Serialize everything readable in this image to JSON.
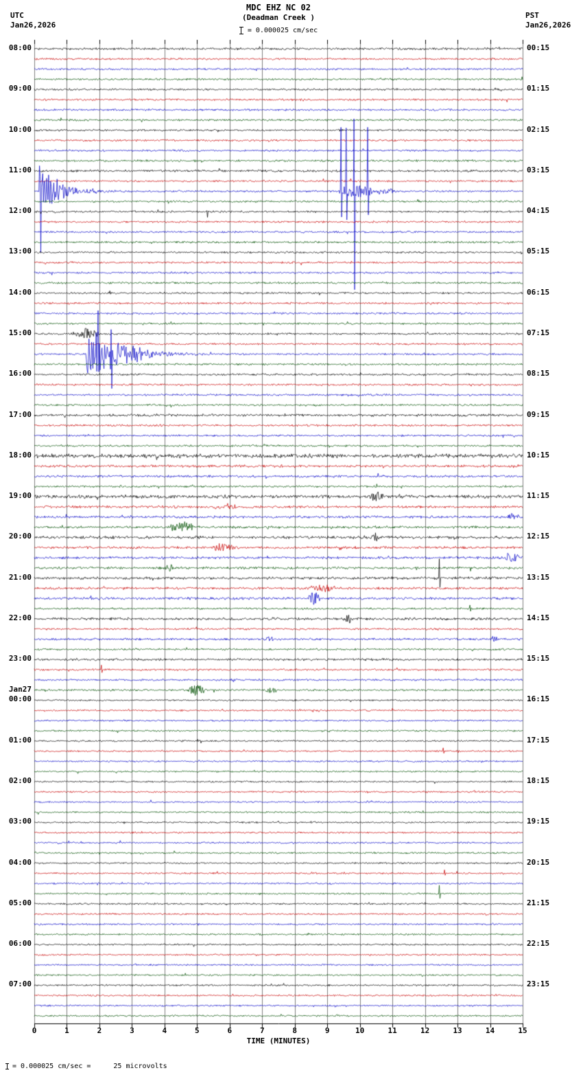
{
  "header": {
    "title": "MDC EHZ NC 02",
    "subtitle": "(Deadman Creek )",
    "scale_note": "= 0.000025 cm/sec",
    "left_tz": "UTC",
    "left_date": "Jan26,2026",
    "right_tz": "PST",
    "right_date": "Jan26,2026"
  },
  "footer": {
    "scale_note": "= 0.000025 cm/sec =",
    "volts_note": "25 microvolts"
  },
  "chart_data": {
    "type": "line",
    "title": "MDC EHZ NC 02 (Deadman Creek) webicorder",
    "xlabel": "TIME (MINUTES)",
    "x_range_minutes": [
      0,
      15
    ],
    "x_ticks": [
      "0",
      "1",
      "2",
      "3",
      "4",
      "5",
      "6",
      "7",
      "8",
      "9",
      "10",
      "11",
      "12",
      "13",
      "14",
      "15"
    ],
    "minutes_per_row": 15,
    "rows_per_hour": 4,
    "row_count": 96,
    "trace_colors": [
      "#000000",
      "#c80000",
      "#0a0ac8",
      "#005000"
    ],
    "grid_color": "#7d7d7d",
    "left_labels": [
      {
        "label": "08:00"
      },
      {
        "label": "09:00"
      },
      {
        "label": "10:00"
      },
      {
        "label": "11:00"
      },
      {
        "label": "12:00"
      },
      {
        "label": "13:00"
      },
      {
        "label": "14:00"
      },
      {
        "label": "15:00"
      },
      {
        "label": "16:00"
      },
      {
        "label": "17:00"
      },
      {
        "label": "18:00"
      },
      {
        "label": "19:00"
      },
      {
        "label": "20:00"
      },
      {
        "label": "21:00"
      },
      {
        "label": "22:00"
      },
      {
        "label": "23:00"
      },
      {
        "prefix": "Jan27",
        "label": "00:00"
      },
      {
        "label": "01:00"
      },
      {
        "label": "02:00"
      },
      {
        "label": "03:00"
      },
      {
        "label": "04:00"
      },
      {
        "label": "05:00"
      },
      {
        "label": "06:00"
      },
      {
        "label": "07:00"
      }
    ],
    "right_labels": [
      "00:15",
      "01:15",
      "02:15",
      "03:15",
      "04:15",
      "05:15",
      "06:15",
      "07:15",
      "08:15",
      "09:15",
      "10:15",
      "11:15",
      "12:15",
      "13:15",
      "14:15",
      "15:15",
      "16:15",
      "17:15",
      "18:15",
      "19:15",
      "20:15",
      "21:15",
      "22:15",
      "23:15"
    ],
    "base_noise": 1.1,
    "quiet_from_row": 64,
    "quiet_noise": 0.95,
    "noisy_rows": {
      "0": 1.3,
      "12": 1.3,
      "36": 1.4,
      "40": 2.3,
      "41": 1.4,
      "42": 1.3,
      "44": 1.9,
      "45": 1.4,
      "46": 1.4,
      "47": 1.4,
      "48": 1.6,
      "49": 1.4,
      "50": 1.4,
      "51": 1.4,
      "52": 1.5,
      "53": 1.4,
      "54": 1.4,
      "56": 1.5,
      "58": 1.3,
      "60": 1.3
    },
    "events": [
      {
        "row": 14,
        "type": "spike",
        "t": 0.18,
        "up": 55,
        "down": 80
      },
      {
        "row": 14,
        "type": "quake",
        "start": 0.15,
        "amp": 26,
        "decay": 1.4
      },
      {
        "row": 14,
        "type": "burst",
        "start": 0.15,
        "end": 1.05,
        "amp": 15
      },
      {
        "row": 14,
        "type": "burst",
        "start": 9.35,
        "end": 10.45,
        "amp": 10
      },
      {
        "row": 14,
        "type": "spike",
        "t": 9.42,
        "up": 95,
        "down": 40
      },
      {
        "row": 14,
        "type": "spike",
        "t": 9.58,
        "up": 100,
        "down": 45
      },
      {
        "row": 14,
        "type": "spike",
        "t": 9.82,
        "up": 102,
        "down": 150
      },
      {
        "row": 14,
        "type": "spike",
        "t": 10.24,
        "up": 92,
        "down": 35
      },
      {
        "row": 14,
        "type": "burst",
        "start": 10.5,
        "end": 11.2,
        "amp": 4
      },
      {
        "row": 16,
        "type": "spike",
        "t": 5.3,
        "up": 2,
        "down": 9
      },
      {
        "row": 28,
        "type": "burst",
        "start": 1.15,
        "end": 2.0,
        "amp": 8
      },
      {
        "row": 30,
        "type": "quake",
        "start": 1.6,
        "amp": 32,
        "decay": 0.95
      },
      {
        "row": 30,
        "type": "burst",
        "start": 1.6,
        "end": 3.4,
        "amp": 12
      },
      {
        "row": 30,
        "type": "spike",
        "t": 1.95,
        "up": 60,
        "down": 40
      },
      {
        "row": 30,
        "type": "spike",
        "t": 2.35,
        "up": 26,
        "down": 34
      },
      {
        "row": 44,
        "type": "burst",
        "start": 10.3,
        "end": 10.75,
        "amp": 7
      },
      {
        "row": 45,
        "type": "burst",
        "start": 5.4,
        "end": 6.3,
        "amp": 4
      },
      {
        "row": 46,
        "type": "burst",
        "start": 14.5,
        "end": 14.9,
        "amp": 6
      },
      {
        "row": 47,
        "type": "burst",
        "start": 4.15,
        "end": 4.95,
        "amp": 8
      },
      {
        "row": 48,
        "type": "burst",
        "start": 10.35,
        "end": 10.6,
        "amp": 5
      },
      {
        "row": 49,
        "type": "burst",
        "start": 5.4,
        "end": 6.2,
        "amp": 6
      },
      {
        "row": 50,
        "type": "burst",
        "start": 14.45,
        "end": 14.9,
        "amp": 9
      },
      {
        "row": 51,
        "type": "burst",
        "start": 3.95,
        "end": 4.3,
        "amp": 5
      },
      {
        "row": 52,
        "type": "spike",
        "t": 12.43,
        "up": 30,
        "down": 14
      },
      {
        "row": 53,
        "type": "burst",
        "start": 8.35,
        "end": 9.3,
        "amp": 5
      },
      {
        "row": 54,
        "type": "burst",
        "start": 8.4,
        "end": 8.8,
        "amp": 9
      },
      {
        "row": 55,
        "type": "spike",
        "t": 13.38,
        "up": 6,
        "down": 4
      },
      {
        "row": 56,
        "type": "burst",
        "start": 9.45,
        "end": 9.85,
        "amp": 6
      },
      {
        "row": 58,
        "type": "burst",
        "start": 7.1,
        "end": 7.35,
        "amp": 4
      },
      {
        "row": 58,
        "type": "burst",
        "start": 14.0,
        "end": 14.25,
        "amp": 4
      },
      {
        "row": 61,
        "type": "spike",
        "t": 2.06,
        "up": 7,
        "down": 5
      },
      {
        "row": 63,
        "type": "burst",
        "start": 4.65,
        "end": 5.3,
        "amp": 8
      },
      {
        "row": 63,
        "type": "burst",
        "start": 7.05,
        "end": 7.5,
        "amp": 5
      },
      {
        "row": 69,
        "type": "spike",
        "t": 12.55,
        "up": 4,
        "down": 3
      },
      {
        "row": 81,
        "type": "spike",
        "t": 12.6,
        "up": 5,
        "down": 4
      },
      {
        "row": 83,
        "type": "spike",
        "t": 12.43,
        "up": 12,
        "down": 8
      }
    ]
  }
}
